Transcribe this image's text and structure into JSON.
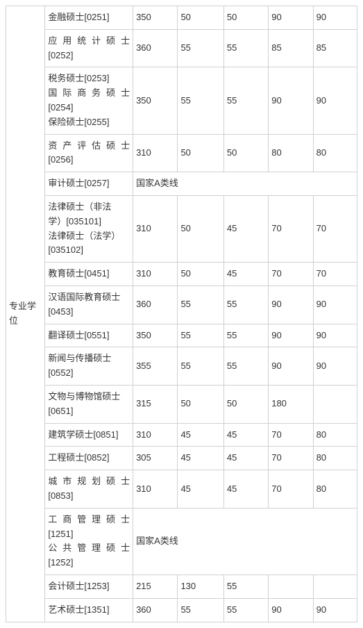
{
  "category_label": "专业学位",
  "colors": {
    "border": "#d0d0d0",
    "text": "#333333",
    "background": "#ffffff"
  },
  "rows": [
    {
      "name": "金融硕士[0251]",
      "scores": [
        "350",
        "50",
        "50",
        "90",
        "90"
      ]
    },
    {
      "name": "应用统计硕士[0252]",
      "scores": [
        "360",
        "55",
        "55",
        "85",
        "85"
      ],
      "justify_lines": [
        "应用统计硕士",
        "[0252]"
      ]
    },
    {
      "name": "税务硕士[0253]\n国际商务硕士[0254]\n保险硕士[0255]",
      "scores": [
        "350",
        "55",
        "55",
        "90",
        "90"
      ],
      "justify_lines": [
        "税务硕士[0253]",
        "国际商务硕士",
        "[0254]",
        "保险硕士[0255]"
      ],
      "no_justify_idx": [
        0,
        2,
        3
      ]
    },
    {
      "name": "资产评估硕士[0256]",
      "scores": [
        "310",
        "50",
        "50",
        "80",
        "80"
      ],
      "justify_lines": [
        "资产评估硕士",
        "[0256]"
      ]
    },
    {
      "name": "审计硕士[0257]",
      "merged": "国家A类线"
    },
    {
      "name": "法律硕士（非法学）[035101]\n法律硕士（法学）[035102]",
      "scores": [
        "310",
        "50",
        "45",
        "70",
        "70"
      ],
      "multiline": [
        "法律硕士（非法",
        "学）[035101]",
        "法律硕士（法学）",
        "[035102]"
      ]
    },
    {
      "name": "教育硕士[0451]",
      "scores": [
        "310",
        "50",
        "45",
        "70",
        "70"
      ]
    },
    {
      "name": "汉语国际教育硕士[0453]",
      "scores": [
        "360",
        "55",
        "55",
        "90",
        "90"
      ],
      "multiline": [
        "汉语国际教育硕士",
        "[0453]"
      ]
    },
    {
      "name": "翻译硕士[0551]",
      "scores": [
        "350",
        "55",
        "55",
        "90",
        "90"
      ]
    },
    {
      "name": "新闻与传播硕士[0552]",
      "scores": [
        "355",
        "55",
        "55",
        "90",
        "90"
      ],
      "multiline": [
        "新闻与传播硕士",
        "[0552]"
      ]
    },
    {
      "name": "文物与博物馆硕士[0651]",
      "scores": [
        "315",
        "50",
        "50",
        "180",
        ""
      ],
      "multiline": [
        "文物与博物馆硕士",
        "[0651]"
      ]
    },
    {
      "name": "建筑学硕士[0851]",
      "scores": [
        "310",
        "45",
        "45",
        "70",
        "80"
      ]
    },
    {
      "name": "工程硕士[0852]",
      "scores": [
        "305",
        "45",
        "45",
        "70",
        "80"
      ]
    },
    {
      "name": "城市规划硕士[0853]",
      "scores": [
        "310",
        "45",
        "45",
        "70",
        "80"
      ],
      "justify_lines": [
        "城市规划硕士",
        "[0853]"
      ]
    },
    {
      "name": "工商管理硕士[1251]\n公共管理硕士[1252]",
      "merged": "国家A类线",
      "justify_lines": [
        "工商管理硕士",
        "[1251]",
        "公共管理硕士",
        "[1252]"
      ]
    },
    {
      "name": "会计硕士[1253]",
      "scores": [
        "215",
        "130",
        "55",
        "",
        ""
      ]
    },
    {
      "name": "艺术硕士[1351]",
      "scores": [
        "360",
        "55",
        "55",
        "90",
        "90"
      ]
    }
  ]
}
